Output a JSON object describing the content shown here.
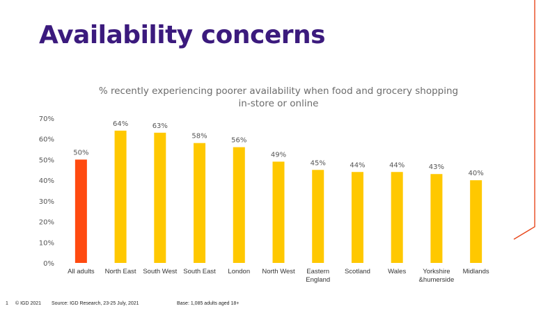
{
  "slide": {
    "title": "Availability concerns",
    "slide_number": "1",
    "copyright": "© IGD 2021",
    "source": "Source: IGD Research, 23-25 July, 2021",
    "base": "Base: 1,085 adults aged 18+"
  },
  "colors": {
    "title": "#3b1a7d",
    "highlight_bar": "#ff4a10",
    "bar": "#ffc800",
    "accent_line": "#e8481c"
  },
  "chart_data": {
    "type": "bar",
    "title_lines": [
      "% recently experiencing poorer availability when food and grocery shopping",
      "in-store or online"
    ],
    "categories": [
      [
        "All adults"
      ],
      [
        "North East"
      ],
      [
        "South West"
      ],
      [
        "South East"
      ],
      [
        "London"
      ],
      [
        "North West"
      ],
      [
        "Eastern",
        "England"
      ],
      [
        "Scotland"
      ],
      [
        "Wales"
      ],
      [
        "Yorkshire",
        "&humerside"
      ],
      [
        "Midlands"
      ]
    ],
    "values": [
      50,
      64,
      63,
      58,
      56,
      49,
      45,
      44,
      44,
      43,
      40
    ],
    "data_labels": [
      "50%",
      "64%",
      "63%",
      "58%",
      "56%",
      "49%",
      "45%",
      "44%",
      "44%",
      "43%",
      "40%"
    ],
    "highlight_index": 0,
    "y_ticks": [
      0,
      10,
      20,
      30,
      40,
      50,
      60,
      70
    ],
    "y_tick_labels": [
      "0%",
      "10%",
      "20%",
      "30%",
      "40%",
      "50%",
      "60%",
      "70%"
    ],
    "ylim": [
      0,
      70
    ],
    "grid": false
  }
}
